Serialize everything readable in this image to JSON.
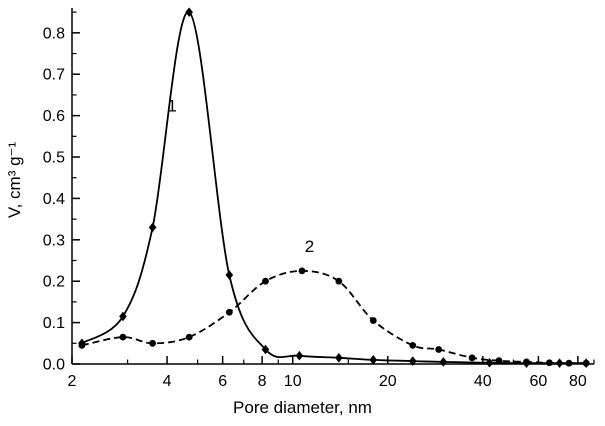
{
  "figure": {
    "background": "#ffffff",
    "foreground": "#000000"
  },
  "chart_data": {
    "type": "line",
    "title": "",
    "xlabel": "Pore diameter, nm",
    "ylabel": "V, cm³ g⁻¹",
    "x_scale": "log",
    "xlim": [
      2,
      90
    ],
    "ylim": [
      0,
      0.86
    ],
    "grid": false,
    "legend_position": "none",
    "x_ticks_labeled": [
      2,
      4,
      6,
      8,
      10,
      20,
      40,
      60,
      80
    ],
    "x_ticks_minor": [
      3,
      5,
      7,
      9,
      15,
      30,
      50,
      70,
      90
    ],
    "y_ticks": [
      "0.0",
      "0.1",
      "0.2",
      "0.3",
      "0.4",
      "0.5",
      "0.6",
      "0.7",
      "0.8"
    ],
    "y_ticks_minor": [
      0.05,
      0.15,
      0.25,
      0.35,
      0.45,
      0.55,
      0.65,
      0.75,
      0.85
    ],
    "series": [
      {
        "name": "1",
        "line_style": "solid",
        "marker": "diamond",
        "color": "#000000",
        "annotation": {
          "text": "1",
          "x": 4.15,
          "y": 0.61
        },
        "x": [
          2.15,
          2.9,
          3.6,
          4.7,
          6.3,
          8.2,
          10.5,
          14,
          18,
          24,
          30,
          42,
          55,
          70,
          85
        ],
        "y": [
          0.05,
          0.115,
          0.33,
          0.85,
          0.215,
          0.035,
          0.02,
          0.015,
          0.01,
          0.007,
          0.005,
          0.003,
          0.002,
          0.002,
          0.002
        ]
      },
      {
        "name": "2",
        "line_style": "dashed",
        "marker": "circle",
        "color": "#000000",
        "annotation": {
          "text": "2",
          "x": 11.3,
          "y": 0.27
        },
        "x": [
          2.15,
          2.9,
          3.6,
          4.7,
          6.3,
          8.2,
          10.7,
          14,
          18,
          24,
          29,
          37,
          45,
          55,
          65,
          75,
          85
        ],
        "y": [
          0.045,
          0.065,
          0.05,
          0.065,
          0.125,
          0.2,
          0.225,
          0.2,
          0.105,
          0.045,
          0.035,
          0.015,
          0.008,
          0.005,
          0.003,
          0.002,
          0.002
        ]
      }
    ]
  }
}
